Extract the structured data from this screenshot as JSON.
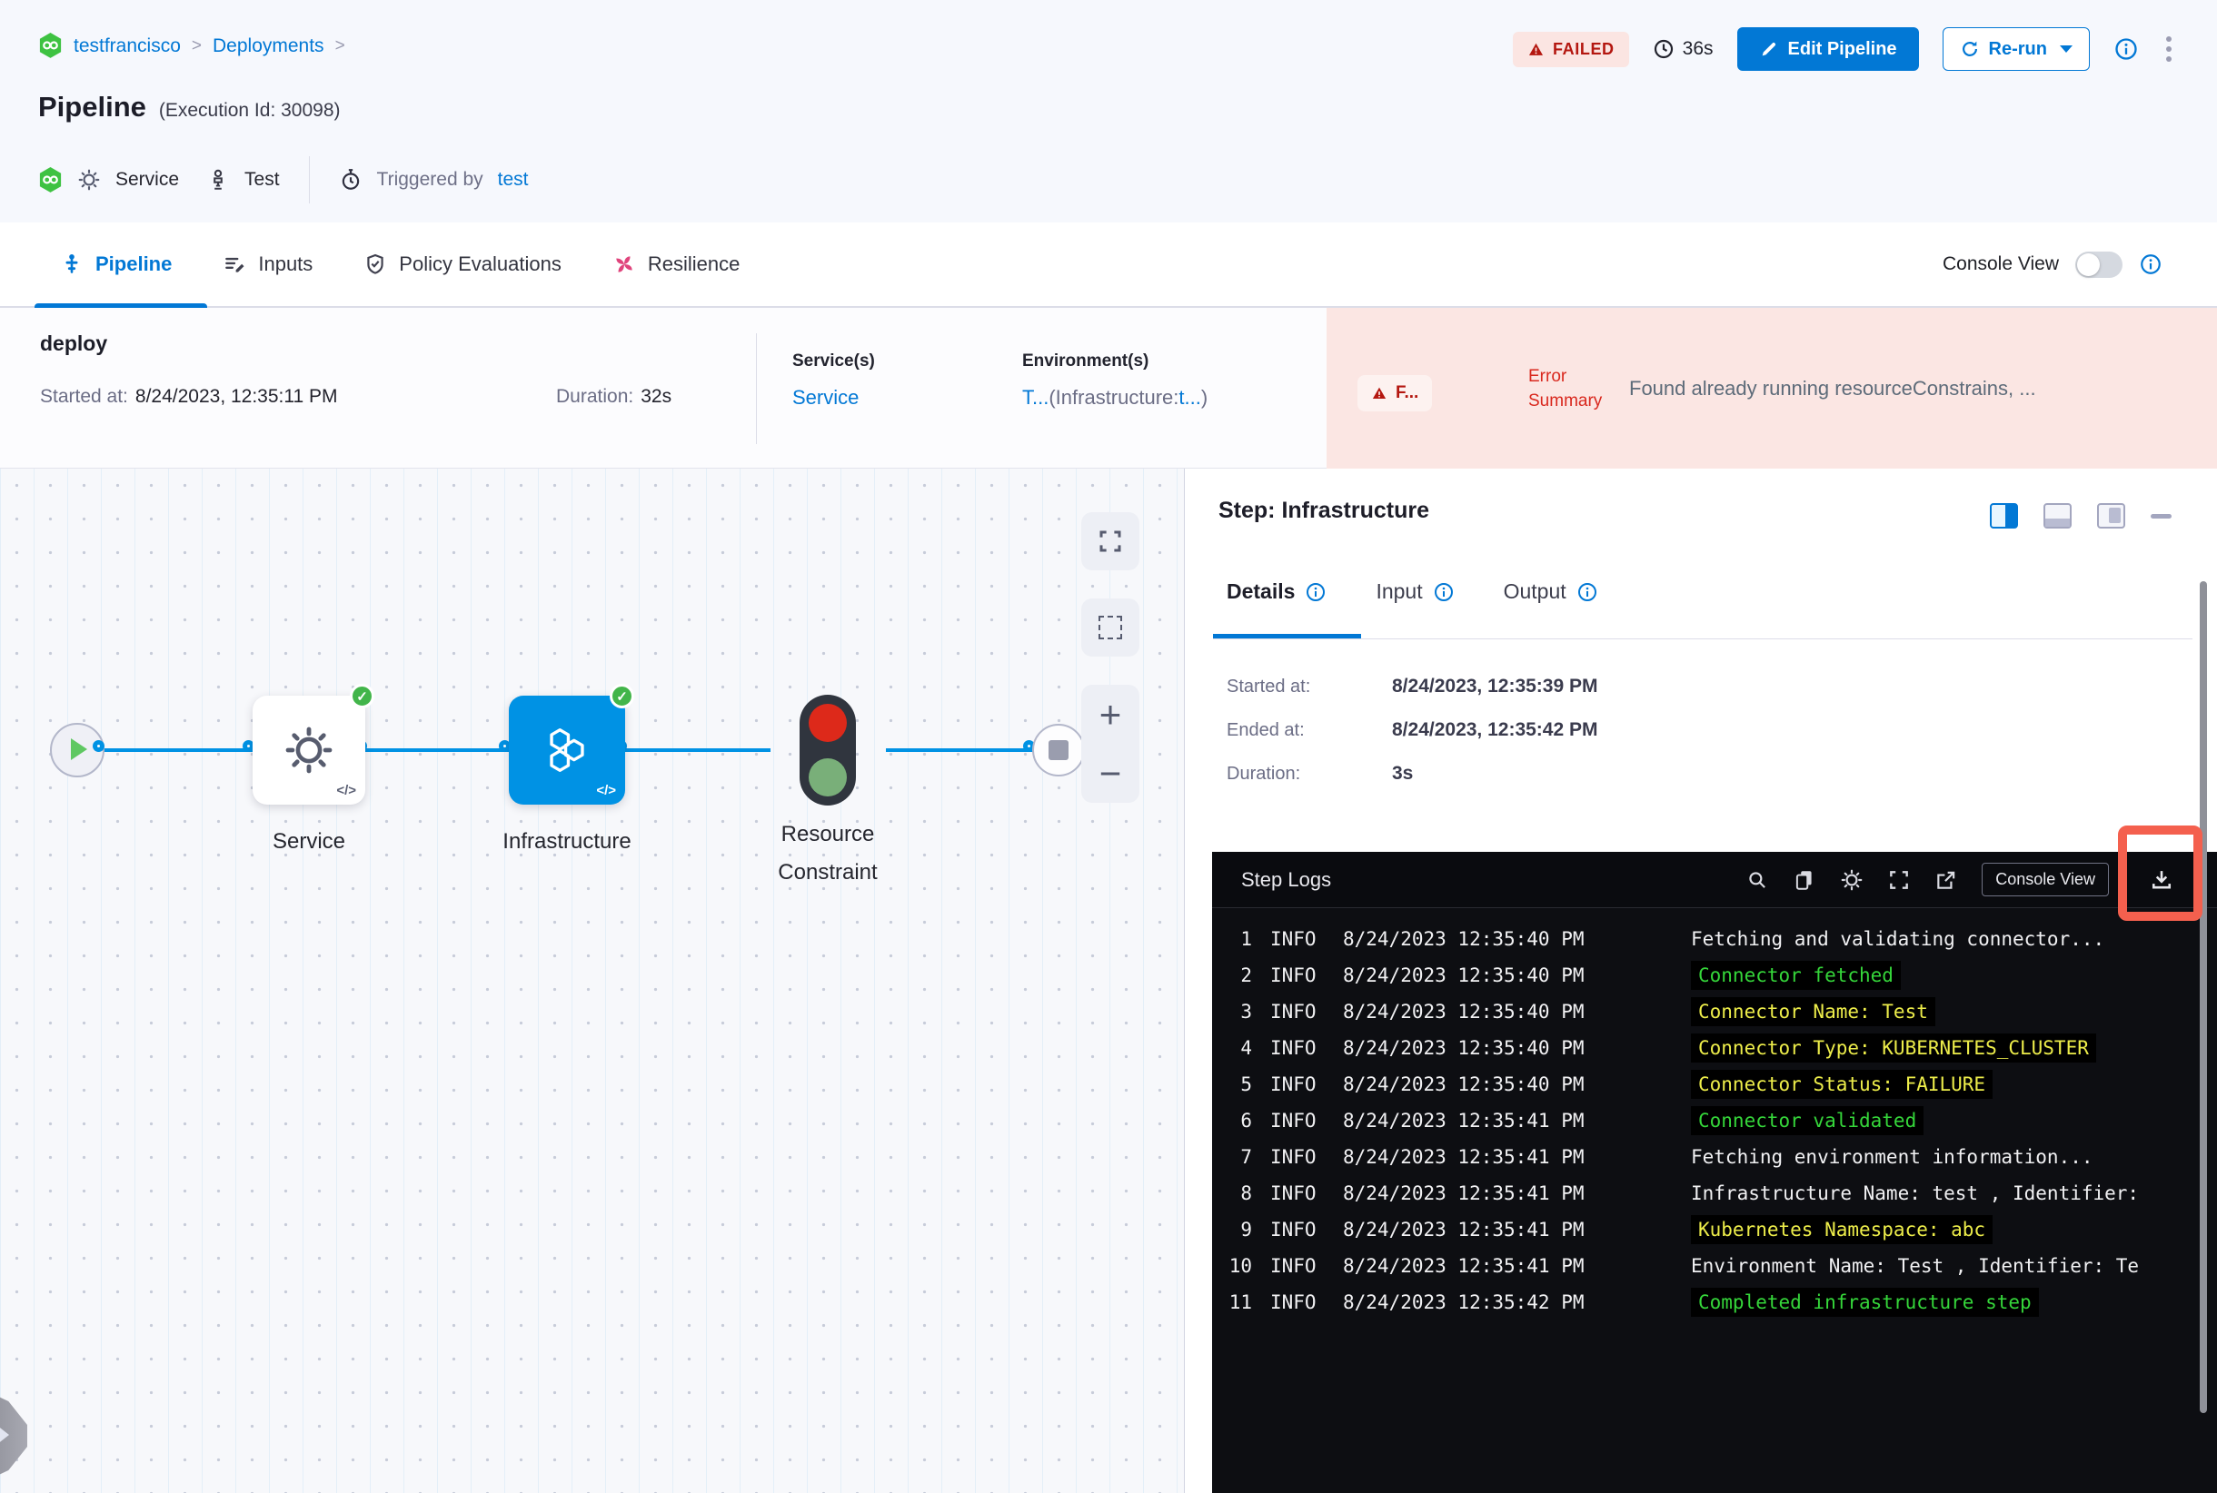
{
  "header": {
    "breadcrumb": {
      "project": "testfrancisco",
      "sep1": ">",
      "section": "Deployments",
      "sep2": ">"
    },
    "title": "Pipeline",
    "execution_id": "(Execution Id: 30098)",
    "meta": {
      "service_label": "Service",
      "test_label": "Test",
      "triggered_by_label": "Triggered by",
      "triggered_by_user": "test"
    },
    "status_badge": "FAILED",
    "elapsed": "36s",
    "edit_button": "Edit Pipeline",
    "rerun_button": "Re-run"
  },
  "tabs": {
    "items": [
      {
        "label": "Pipeline"
      },
      {
        "label": "Inputs"
      },
      {
        "label": "Policy Evaluations"
      },
      {
        "label": "Resilience"
      }
    ],
    "console_view_label": "Console View"
  },
  "stage": {
    "name": "deploy",
    "started_label": "Started at:",
    "started_value": "8/24/2023, 12:35:11 PM",
    "duration_label": "Duration:",
    "duration_value": "32s",
    "services_label": "Service(s)",
    "service_link": "Service",
    "environments_label": "Environment(s)",
    "env_link_1": "T...",
    "env_infra": "(Infrastructure:",
    "env_link_2": "t...",
    "env_close": ")"
  },
  "error_summary": {
    "badge": "F...",
    "label_line1": "Error",
    "label_line2": "Summary",
    "message": "Found already running resourceConstrains, ..."
  },
  "graph": {
    "node_service": "Service",
    "node_infrastructure": "Infrastructure",
    "node_resource_line1": "Resource",
    "node_resource_line2": "Constraint",
    "code_glyph": "</>",
    "zoom_in": "+",
    "zoom_out": "−"
  },
  "step_panel": {
    "title": "Step: Infrastructure",
    "tabs": [
      {
        "label": "Details"
      },
      {
        "label": "Input"
      },
      {
        "label": "Output"
      }
    ],
    "details": [
      {
        "label": "Started at:",
        "value": "8/24/2023, 12:35:39 PM"
      },
      {
        "label": "Ended at:",
        "value": "8/24/2023, 12:35:42 PM"
      },
      {
        "label": "Duration:",
        "value": "3s"
      }
    ]
  },
  "logs": {
    "title": "Step Logs",
    "console_view_button": "Console View",
    "lines": [
      {
        "num": "1",
        "level": "INFO",
        "time": "8/24/2023 12:35:40 PM",
        "message": "Fetching and validating connector...",
        "color": "white"
      },
      {
        "num": "2",
        "level": "INFO",
        "time": "8/24/2023 12:35:40 PM",
        "message": "Connector fetched",
        "color": "green"
      },
      {
        "num": "3",
        "level": "INFO",
        "time": "8/24/2023 12:35:40 PM",
        "message": "Connector Name: Test",
        "color": "yellow"
      },
      {
        "num": "4",
        "level": "INFO",
        "time": "8/24/2023 12:35:40 PM",
        "message": "Connector Type: KUBERNETES_CLUSTER",
        "color": "yellow"
      },
      {
        "num": "5",
        "level": "INFO",
        "time": "8/24/2023 12:35:40 PM",
        "message": "Connector Status: FAILURE",
        "color": "yellow"
      },
      {
        "num": "6",
        "level": "INFO",
        "time": "8/24/2023 12:35:41 PM",
        "message": "Connector validated",
        "color": "green"
      },
      {
        "num": "7",
        "level": "INFO",
        "time": "8/24/2023 12:35:41 PM",
        "message": "Fetching environment information...",
        "color": "white"
      },
      {
        "num": "8",
        "level": "INFO",
        "time": "8/24/2023 12:35:41 PM",
        "message": "Infrastructure Name: test , Identifier:",
        "color": "white"
      },
      {
        "num": "9",
        "level": "INFO",
        "time": "8/24/2023 12:35:41 PM",
        "message": "Kubernetes Namespace: abc",
        "color": "yellow"
      },
      {
        "num": "10",
        "level": "INFO",
        "time": "8/24/2023 12:35:41 PM",
        "message": "Environment Name: Test , Identifier: Te",
        "color": "white"
      },
      {
        "num": "11",
        "level": "INFO",
        "time": "8/24/2023 12:35:42 PM",
        "message": "Completed infrastructure step",
        "color": "green"
      }
    ]
  },
  "colors": {
    "accent_blue": "#0278d5",
    "graph_blue": "#0092e4",
    "failed_red": "#b41710",
    "error_bg": "#fbe6e3",
    "success_green": "#42b54a",
    "log_green": "#35d63a",
    "log_yellow": "#eded4a",
    "highlight_red": "#f4604e"
  }
}
